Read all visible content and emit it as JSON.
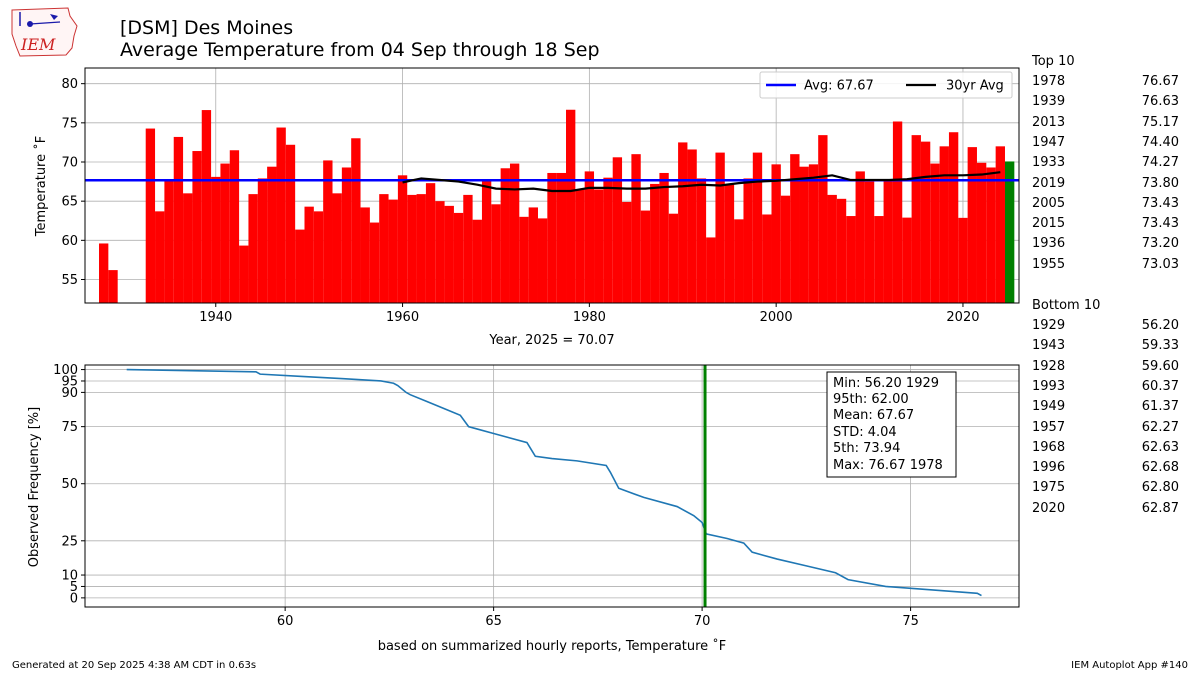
{
  "header": {
    "logo_text": "IEM",
    "title_line1": "[DSM] Des Moines",
    "title_line2": "Average Temperature from 04 Sep through 18 Sep"
  },
  "chart_data": [
    {
      "type": "bar",
      "ylabel": "Temperature $^\\circ$F",
      "ylabel_display": "Temperature ˚F",
      "xlabel": "Year, 2025 = 70.07",
      "xlim": [
        1926,
        2026
      ],
      "ylim": [
        52,
        82
      ],
      "yticks": [
        55,
        60,
        65,
        70,
        75,
        80
      ],
      "xticks": [
        1940,
        1960,
        1980,
        2000,
        2020
      ],
      "grid": true,
      "legend_position": "top-right",
      "colors": {
        "bar": "#ff0000",
        "current": "#008000",
        "avg": "#0000ff",
        "ma30": "#000000"
      },
      "current_year": 2025,
      "current_value": 70.07,
      "years": [
        1928,
        1929,
        1933,
        1934,
        1935,
        1936,
        1937,
        1938,
        1939,
        1940,
        1941,
        1942,
        1943,
        1944,
        1945,
        1946,
        1947,
        1948,
        1949,
        1950,
        1951,
        1952,
        1953,
        1954,
        1955,
        1956,
        1957,
        1958,
        1959,
        1960,
        1961,
        1962,
        1963,
        1964,
        1965,
        1966,
        1967,
        1968,
        1969,
        1970,
        1971,
        1972,
        1973,
        1974,
        1975,
        1976,
        1977,
        1978,
        1979,
        1980,
        1981,
        1982,
        1983,
        1984,
        1985,
        1986,
        1987,
        1988,
        1989,
        1990,
        1991,
        1992,
        1993,
        1994,
        1995,
        1996,
        1997,
        1998,
        1999,
        2000,
        2001,
        2002,
        2003,
        2004,
        2005,
        2006,
        2007,
        2008,
        2009,
        2010,
        2011,
        2012,
        2013,
        2014,
        2015,
        2016,
        2017,
        2018,
        2019,
        2020,
        2021,
        2022,
        2023,
        2024,
        2025
      ],
      "values": [
        59.6,
        56.2,
        74.27,
        63.7,
        67.8,
        73.2,
        66.0,
        71.4,
        76.63,
        68.1,
        69.8,
        71.5,
        59.33,
        65.9,
        67.9,
        69.4,
        74.4,
        72.2,
        61.37,
        64.3,
        63.7,
        70.2,
        66.0,
        69.3,
        73.03,
        64.2,
        62.27,
        65.9,
        65.2,
        68.3,
        65.8,
        65.9,
        67.3,
        65.0,
        64.4,
        63.5,
        65.8,
        62.63,
        67.8,
        64.6,
        69.2,
        69.8,
        63.0,
        64.2,
        62.8,
        68.6,
        68.6,
        76.67,
        66.5,
        68.8,
        66.5,
        68.0,
        70.6,
        64.9,
        71.0,
        63.8,
        67.2,
        68.6,
        63.4,
        72.5,
        71.6,
        67.9,
        60.37,
        71.2,
        67.1,
        62.68,
        67.9,
        71.2,
        63.3,
        69.7,
        65.7,
        71.0,
        69.4,
        69.7,
        73.43,
        65.8,
        65.3,
        63.1,
        68.8,
        67.5,
        63.1,
        67.6,
        75.17,
        62.9,
        73.43,
        72.6,
        69.8,
        72.0,
        73.8,
        62.87,
        71.9,
        69.9,
        69.3,
        72.0,
        70.07
      ],
      "series": [
        {
          "name": "Avg: 67.67",
          "value": 67.67
        },
        {
          "name": "30yr Avg",
          "x": [
            1960,
            1962,
            1964,
            1966,
            1968,
            1970,
            1972,
            1974,
            1976,
            1978,
            1980,
            1982,
            1984,
            1986,
            1988,
            1990,
            1992,
            1994,
            1996,
            1998,
            2000,
            2002,
            2004,
            2006,
            2008,
            2010,
            2012,
            2014,
            2016,
            2018,
            2020,
            2022,
            2024
          ],
          "values": [
            67.4,
            67.9,
            67.7,
            67.5,
            67.1,
            66.6,
            66.5,
            66.6,
            66.3,
            66.3,
            66.7,
            66.7,
            66.6,
            66.6,
            66.8,
            66.9,
            67.1,
            67.0,
            67.3,
            67.5,
            67.6,
            67.8,
            68.0,
            68.3,
            67.7,
            67.7,
            67.7,
            67.8,
            68.1,
            68.3,
            68.3,
            68.4,
            68.7
          ]
        }
      ]
    },
    {
      "type": "line",
      "xlabel": "based on summarized hourly reports, Temperature $^\\circ$F",
      "xlabel_display": "based on summarized hourly reports, Temperature ˚F",
      "ylabel": "Observed Frequency [%]",
      "xlim": [
        55.2,
        77.6
      ],
      "ylim": [
        -4,
        102
      ],
      "xticks": [
        60,
        65,
        70,
        75
      ],
      "yticks": [
        0,
        5,
        10,
        25,
        50,
        75,
        90,
        95,
        100
      ],
      "grid": true,
      "colors": {
        "line": "#1f77b4",
        "marker": "#008000"
      },
      "current_marker_x": 70.07,
      "x": [
        56.2,
        59.3,
        59.4,
        60.4,
        61.4,
        62.3,
        62.6,
        62.7,
        62.9,
        63.0,
        63.4,
        63.8,
        64.2,
        64.4,
        64.6,
        65.0,
        65.8,
        65.9,
        66.0,
        66.4,
        67.0,
        67.7,
        67.8,
        68.0,
        68.6,
        69.4,
        69.8,
        70.0,
        70.1,
        70.6,
        71.0,
        71.2,
        71.8,
        72.5,
        73.2,
        73.5,
        74.4,
        76.6,
        76.7
      ],
      "values": [
        100,
        99,
        98,
        97,
        96,
        95,
        94,
        93,
        90,
        89,
        86,
        83,
        80,
        75,
        74,
        72,
        68,
        65,
        62,
        61,
        60,
        58,
        55,
        48,
        44,
        40,
        36,
        33,
        28,
        26,
        24,
        20,
        17,
        14,
        11,
        8,
        5,
        2,
        1
      ],
      "stats_box": [
        "Min: 56.20 1929",
        "95th: 62.00",
        "Mean: 67.67",
        "STD: 4.04",
        "5th: 73.94",
        "Max: 76.67 1978"
      ]
    }
  ],
  "top10": {
    "title": "Top 10",
    "rows": [
      {
        "year": "1978",
        "value": "76.67"
      },
      {
        "year": "1939",
        "value": "76.63"
      },
      {
        "year": "2013",
        "value": "75.17"
      },
      {
        "year": "1947",
        "value": "74.40"
      },
      {
        "year": "1933",
        "value": "74.27"
      },
      {
        "year": "2019",
        "value": "73.80"
      },
      {
        "year": "2005",
        "value": "73.43"
      },
      {
        "year": "2015",
        "value": "73.43"
      },
      {
        "year": "1936",
        "value": "73.20"
      },
      {
        "year": "1955",
        "value": "73.03"
      }
    ]
  },
  "bottom10": {
    "title": "Bottom 10",
    "rows": [
      {
        "year": "1929",
        "value": "56.20"
      },
      {
        "year": "1943",
        "value": "59.33"
      },
      {
        "year": "1928",
        "value": "59.60"
      },
      {
        "year": "1993",
        "value": "60.37"
      },
      {
        "year": "1949",
        "value": "61.37"
      },
      {
        "year": "1957",
        "value": "62.27"
      },
      {
        "year": "1968",
        "value": "62.63"
      },
      {
        "year": "1996",
        "value": "62.68"
      },
      {
        "year": "1975",
        "value": "62.80"
      },
      {
        "year": "2020",
        "value": "62.87"
      }
    ]
  },
  "footer": {
    "generated": "Generated at 20 Sep 2025 4:38 AM CDT in 0.63s",
    "app": "IEM Autoplot App #140"
  }
}
